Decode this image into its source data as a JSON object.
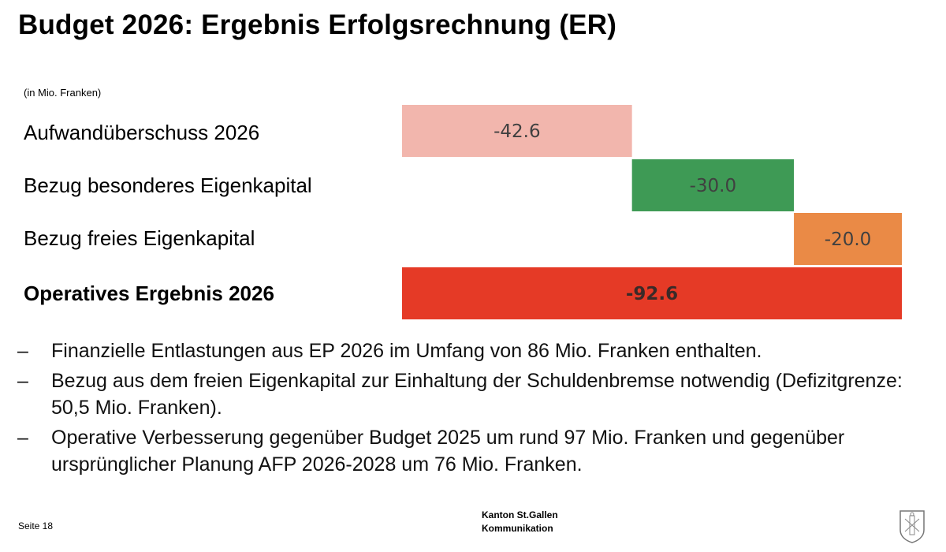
{
  "title": "Budget 2026: Ergebnis Erfolgsrechnung (ER)",
  "unit_note": "(in Mio. Franken)",
  "chart_data": {
    "type": "bar",
    "subtype": "waterfall-horizontal",
    "categories": [
      "Aufwandüberschuss 2026",
      "Bezug besonderes Eigenkapital",
      "Bezug freies Eigenkapital",
      "Operatives Ergebnis 2026"
    ],
    "values": [
      -42.6,
      -30.0,
      -20.0,
      -92.6
    ],
    "value_labels": [
      "-42.6",
      "-30.0",
      "-20.0",
      "-92.6"
    ],
    "is_total": [
      false,
      false,
      false,
      true
    ],
    "colors": [
      "#f2b6ad",
      "#3e9a55",
      "#ea8a46",
      "#e53a26"
    ],
    "label_bold": [
      false,
      false,
      false,
      true
    ],
    "grid": false,
    "legend": "none"
  },
  "bullets": [
    "Finanzielle Entlastungen aus EP 2026 im Umfang von 86 Mio. Franken enthalten.",
    "Bezug aus dem freien Eigenkapital zur Einhaltung der Schuldenbremse notwendig (Defizitgrenze: 50,5 Mio. Franken).",
    "Operative Verbesserung gegenüber Budget 2025 um rund 97 Mio. Franken und gegenüber ursprünglicher Planung AFP 2026-2028 um 76 Mio. Franken."
  ],
  "bullet_marker": "–",
  "footer": {
    "page": "Seite 18",
    "org_line1": "Kanton St.Gallen",
    "org_line2": "Kommunikation",
    "crest_icon": "coat-of-arms-icon"
  }
}
